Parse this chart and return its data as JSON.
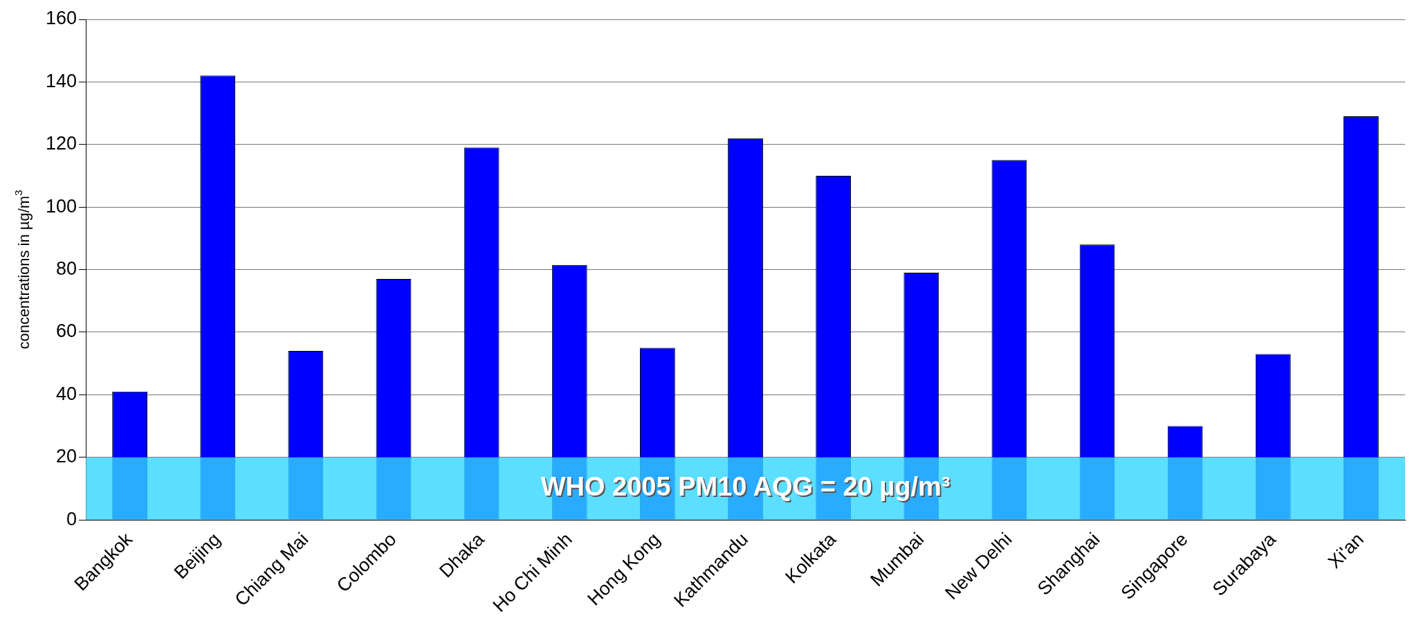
{
  "chart_data": {
    "type": "bar",
    "ylabel": "concentrations in µg/m$^{3}$",
    "categories": [
      "Bangkok",
      "Beijing",
      "Chiang Mai",
      "Colombo",
      "Dhaka",
      "Ho Chi Minh",
      "Hong Kong",
      "Kathmandu",
      "Kolkata",
      "Mumbai",
      "New Delhi",
      "Shanghai",
      "Singapore",
      "Surabaya",
      "Xi'an"
    ],
    "values": [
      41,
      142,
      54,
      77,
      119,
      81.5,
      55,
      122,
      110,
      79,
      115,
      88,
      30,
      53,
      129
    ],
    "color": "#0000ff",
    "ylim": [
      0,
      160
    ],
    "yticks": [
      0,
      20,
      40,
      60,
      80,
      100,
      120,
      140,
      160
    ],
    "grid": "y",
    "bands": [
      {
        "axis": "y",
        "from": 0,
        "to": 20,
        "label": "WHO 2005 PM10 AQG = 20 µg/m³",
        "color": "#33d6ff"
      }
    ]
  }
}
